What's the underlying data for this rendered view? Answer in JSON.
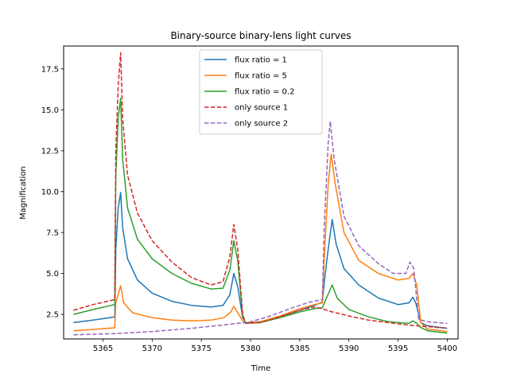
{
  "chart_data": {
    "type": "line",
    "title": "Binary-source binary-lens light curves",
    "xlabel": "Time",
    "ylabel": "Magnification",
    "xlim": [
      5361.0,
      5401.1
    ],
    "ylim": [
      1.0,
      18.9
    ],
    "xticks": [
      5365,
      5370,
      5375,
      5380,
      5385,
      5390,
      5395,
      5400
    ],
    "yticks": [
      2.5,
      5.0,
      7.5,
      10.0,
      12.5,
      15.0,
      17.5
    ],
    "xtick_labels": [
      "5365",
      "5370",
      "5375",
      "5380",
      "5385",
      "5390",
      "5395",
      "5400"
    ],
    "ytick_labels": [
      "2.5",
      "5.0",
      "7.5",
      "10.0",
      "12.5",
      "15.0",
      "17.5"
    ],
    "grid": false,
    "legend_position": "top-center",
    "series": [
      {
        "name": "flux ratio = 1",
        "color": "#1f77b4",
        "dash": "solid",
        "points": [
          [
            5362,
            2.0
          ],
          [
            5364,
            2.15
          ],
          [
            5366.2,
            2.35
          ],
          [
            5366.3,
            6.5
          ],
          [
            5366.55,
            9.0
          ],
          [
            5366.8,
            9.95
          ],
          [
            5367.0,
            7.8
          ],
          [
            5367.5,
            5.9
          ],
          [
            5368.5,
            4.6
          ],
          [
            5370,
            3.8
          ],
          [
            5372,
            3.3
          ],
          [
            5374,
            3.05
          ],
          [
            5376,
            2.95
          ],
          [
            5377.2,
            3.05
          ],
          [
            5377.9,
            3.7
          ],
          [
            5378.3,
            5.0
          ],
          [
            5378.7,
            4.2
          ],
          [
            5379.2,
            2.3
          ],
          [
            5379.5,
            2.0
          ],
          [
            5381,
            2.05
          ],
          [
            5383,
            2.35
          ],
          [
            5385,
            2.75
          ],
          [
            5386.5,
            3.05
          ],
          [
            5387.3,
            3.25
          ],
          [
            5387.5,
            4.5
          ],
          [
            5387.9,
            6.5
          ],
          [
            5388.3,
            8.3
          ],
          [
            5388.7,
            6.8
          ],
          [
            5389.5,
            5.3
          ],
          [
            5391,
            4.3
          ],
          [
            5393,
            3.5
          ],
          [
            5395,
            3.1
          ],
          [
            5396.1,
            3.2
          ],
          [
            5396.5,
            3.55
          ],
          [
            5396.8,
            3.2
          ],
          [
            5397.3,
            2.0
          ],
          [
            5398,
            1.8
          ],
          [
            5400,
            1.65
          ]
        ]
      },
      {
        "name": "flux ratio = 5",
        "color": "#ff7f0e",
        "dash": "solid",
        "points": [
          [
            5362,
            1.5
          ],
          [
            5364,
            1.58
          ],
          [
            5366.2,
            1.68
          ],
          [
            5366.3,
            3.2
          ],
          [
            5366.8,
            4.25
          ],
          [
            5367.1,
            3.2
          ],
          [
            5368,
            2.6
          ],
          [
            5370,
            2.3
          ],
          [
            5372,
            2.15
          ],
          [
            5374,
            2.1
          ],
          [
            5376,
            2.15
          ],
          [
            5377.3,
            2.3
          ],
          [
            5378.0,
            2.65
          ],
          [
            5378.3,
            3.0
          ],
          [
            5378.7,
            2.6
          ],
          [
            5379.3,
            2.0
          ],
          [
            5381,
            2.05
          ],
          [
            5383,
            2.4
          ],
          [
            5385,
            2.85
          ],
          [
            5386.5,
            3.1
          ],
          [
            5387.3,
            3.2
          ],
          [
            5387.5,
            6.0
          ],
          [
            5387.9,
            10.5
          ],
          [
            5388.2,
            12.3
          ],
          [
            5388.6,
            10.5
          ],
          [
            5389.5,
            7.5
          ],
          [
            5391,
            5.8
          ],
          [
            5393,
            5.0
          ],
          [
            5395,
            4.6
          ],
          [
            5396.1,
            4.7
          ],
          [
            5396.5,
            5.0
          ],
          [
            5396.9,
            4.3
          ],
          [
            5397.3,
            2.0
          ],
          [
            5398,
            1.6
          ],
          [
            5400,
            1.45
          ]
        ]
      },
      {
        "name": "flux ratio = 0.2",
        "color": "#2ca02c",
        "dash": "solid",
        "points": [
          [
            5362,
            2.5
          ],
          [
            5364,
            2.8
          ],
          [
            5366.2,
            3.1
          ],
          [
            5366.3,
            11.0
          ],
          [
            5366.55,
            14.5
          ],
          [
            5366.8,
            15.7
          ],
          [
            5367.0,
            12.0
          ],
          [
            5367.5,
            9.0
          ],
          [
            5368.5,
            7.1
          ],
          [
            5370,
            5.9
          ],
          [
            5372,
            5.0
          ],
          [
            5374,
            4.4
          ],
          [
            5376,
            4.05
          ],
          [
            5377.2,
            4.1
          ],
          [
            5377.9,
            5.2
          ],
          [
            5378.3,
            7.0
          ],
          [
            5378.7,
            5.8
          ],
          [
            5379.2,
            2.4
          ],
          [
            5379.5,
            1.95
          ],
          [
            5381,
            2.0
          ],
          [
            5383,
            2.3
          ],
          [
            5385,
            2.65
          ],
          [
            5386.5,
            2.85
          ],
          [
            5387.3,
            2.9
          ],
          [
            5387.5,
            3.2
          ],
          [
            5388.3,
            4.3
          ],
          [
            5388.8,
            3.5
          ],
          [
            5390,
            2.8
          ],
          [
            5392,
            2.35
          ],
          [
            5394,
            2.05
          ],
          [
            5396.1,
            1.95
          ],
          [
            5396.5,
            2.1
          ],
          [
            5396.9,
            1.95
          ],
          [
            5397.3,
            1.7
          ],
          [
            5398,
            1.5
          ],
          [
            5400,
            1.35
          ]
        ]
      },
      {
        "name": "only source 1",
        "color": "#d62728",
        "dash": "dashed",
        "points": [
          [
            5362,
            2.75
          ],
          [
            5364,
            3.1
          ],
          [
            5366.2,
            3.4
          ],
          [
            5366.3,
            12.5
          ],
          [
            5366.55,
            16.5
          ],
          [
            5366.8,
            18.5
          ],
          [
            5367.0,
            14.5
          ],
          [
            5367.5,
            11.0
          ],
          [
            5368.5,
            8.7
          ],
          [
            5370,
            7.0
          ],
          [
            5372,
            5.7
          ],
          [
            5374,
            4.75
          ],
          [
            5376,
            4.3
          ],
          [
            5377.2,
            4.5
          ],
          [
            5377.9,
            6.0
          ],
          [
            5378.3,
            8.0
          ],
          [
            5378.7,
            6.5
          ],
          [
            5379.2,
            2.5
          ],
          [
            5379.5,
            1.95
          ],
          [
            5381,
            2.0
          ],
          [
            5383,
            2.35
          ],
          [
            5385,
            2.75
          ],
          [
            5386.5,
            2.95
          ],
          [
            5387.3,
            2.85
          ],
          [
            5388,
            2.7
          ],
          [
            5390,
            2.4
          ],
          [
            5392,
            2.15
          ],
          [
            5394,
            2.0
          ],
          [
            5396,
            1.85
          ],
          [
            5398,
            1.75
          ],
          [
            5400,
            1.65
          ]
        ]
      },
      {
        "name": "only source 2",
        "color": "#9467bd",
        "dash": "dashed",
        "points": [
          [
            5362,
            1.25
          ],
          [
            5366,
            1.32
          ],
          [
            5370,
            1.45
          ],
          [
            5374,
            1.65
          ],
          [
            5378,
            1.9
          ],
          [
            5380,
            2.05
          ],
          [
            5382,
            2.4
          ],
          [
            5384,
            2.85
          ],
          [
            5386,
            3.25
          ],
          [
            5387.3,
            3.4
          ],
          [
            5387.5,
            8.0
          ],
          [
            5387.9,
            13.0
          ],
          [
            5388.1,
            14.3
          ],
          [
            5388.5,
            12.0
          ],
          [
            5389.5,
            8.5
          ],
          [
            5391,
            6.7
          ],
          [
            5393,
            5.6
          ],
          [
            5394.5,
            5.0
          ],
          [
            5395.8,
            5.0
          ],
          [
            5396.2,
            5.7
          ],
          [
            5396.6,
            5.3
          ],
          [
            5397.1,
            2.2
          ],
          [
            5398,
            2.05
          ],
          [
            5400,
            1.95
          ]
        ]
      }
    ]
  }
}
